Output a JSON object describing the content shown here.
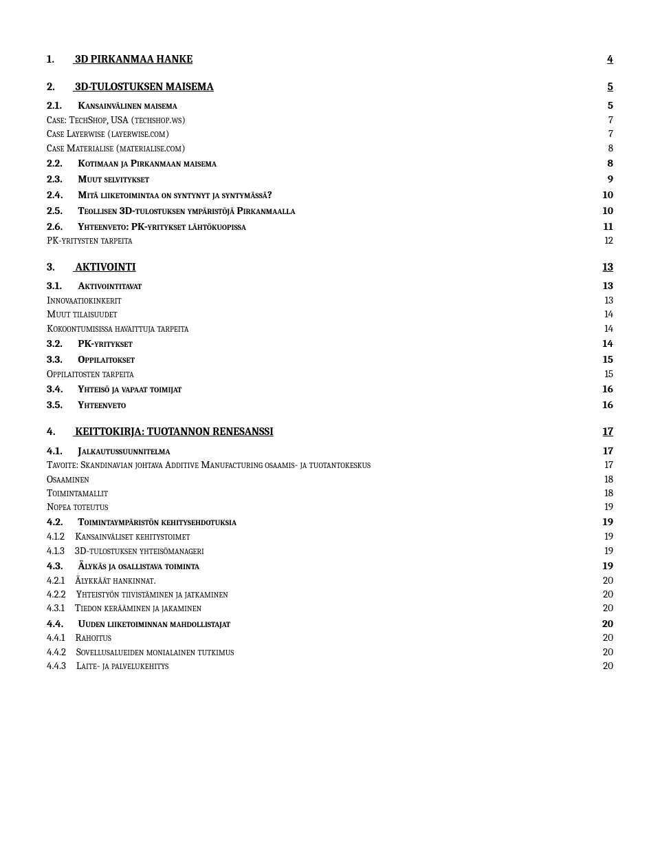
{
  "entries": [
    {
      "level": 1,
      "num": "1.",
      "text": "3D PIRKANMAA HANKE",
      "page": "4"
    },
    {
      "level": 1,
      "num": "2.",
      "text": "3D-TULOSTUKSEN MAISEMA",
      "page": "5"
    },
    {
      "level": 2,
      "num": "2.1.",
      "text": "Kansainvälinen maisema",
      "page": "5"
    },
    {
      "level": 3,
      "num": "",
      "text": "Case: TechShop, USA (techshop.ws)",
      "page": "7"
    },
    {
      "level": 3,
      "num": "",
      "text": "Case Layerwise (layerwise.com)",
      "page": "7"
    },
    {
      "level": 3,
      "num": "",
      "text": "Case Materialise (materialise.com)",
      "page": "8"
    },
    {
      "level": 2,
      "num": "2.2.",
      "text": "Kotimaan ja Pirkanmaan maisema",
      "page": "8"
    },
    {
      "level": 2,
      "num": "2.3.",
      "text": "Muut selvitykset",
      "page": "9"
    },
    {
      "level": 2,
      "num": "2.4.",
      "text": "Mitä liiketoimintaa on syntynyt ja syntymässä?",
      "page": "10"
    },
    {
      "level": 2,
      "num": "2.5.",
      "text": "Teollisen 3D-tulostuksen ympäristöjä Pirkanmaalla",
      "page": "10"
    },
    {
      "level": 2,
      "num": "2.6.",
      "text": "Yhteenveto: PK-yritykset lähtökuopissa",
      "page": "11"
    },
    {
      "level": 3,
      "num": "",
      "text": "PK-yritysten tarpeita",
      "page": "12"
    },
    {
      "level": 1,
      "num": "3.",
      "text": "AKTIVOINTI",
      "page": "13"
    },
    {
      "level": 2,
      "num": "3.1.",
      "text": "Aktivointitavat",
      "page": "13"
    },
    {
      "level": 3,
      "num": "",
      "text": "Innovaatiokinkerit",
      "page": "13"
    },
    {
      "level": 3,
      "num": "",
      "text": "Muut tilaisuudet",
      "page": "14"
    },
    {
      "level": 3,
      "num": "",
      "text": "Kokoontumisissa havaittuja tarpeita",
      "page": "14"
    },
    {
      "level": 2,
      "num": "3.2.",
      "text": "PK-yritykset",
      "page": "14"
    },
    {
      "level": 2,
      "num": "3.3.",
      "text": "Oppilaitokset",
      "page": "15"
    },
    {
      "level": 3,
      "num": "",
      "text": "Oppilaitosten tarpeita",
      "page": "15"
    },
    {
      "level": 2,
      "num": "3.4.",
      "text": "Yhteisö ja vapaat toimijat",
      "page": "16"
    },
    {
      "level": 2,
      "num": "3.5.",
      "text": "Yhteenveto",
      "page": "16"
    },
    {
      "level": 1,
      "num": "4.",
      "text": "KEITTOKIRJA: TUOTANNON RENESANSSI",
      "page": "17"
    },
    {
      "level": 2,
      "num": "4.1.",
      "text": "Jalkautussuunnitelma",
      "page": "17"
    },
    {
      "level": 3,
      "num": "",
      "text": "Tavoite: Skandinavian johtava Additive Manufacturing  osaamis- ja tuotantokeskus",
      "page": "17"
    },
    {
      "level": 3,
      "num": "",
      "text": "Osaaminen",
      "page": "18"
    },
    {
      "level": 3,
      "num": "",
      "text": "Toimintamallit",
      "page": "18"
    },
    {
      "level": 3,
      "num": "",
      "text": "Nopea toteutus",
      "page": "19"
    },
    {
      "level": 2,
      "num": "4.2.",
      "text": "Toimintaympäristön kehitysehdotuksia",
      "page": "19"
    },
    {
      "level": 3,
      "num": "4.1.2",
      "text": "Kansainväliset kehitystoimet",
      "page": "19"
    },
    {
      "level": 3,
      "num": "4.1.3",
      "text": "3D-tulostuksen yhteisömanageri",
      "page": "19"
    },
    {
      "level": 2,
      "num": "4.3.",
      "text": "Älykäs ja osallistava toiminta",
      "page": "19"
    },
    {
      "level": 3,
      "num": "4.2.1",
      "text": "Älykkäät hankinnat.",
      "page": "20"
    },
    {
      "level": 3,
      "num": "4.2.2",
      "text": "Yhteistyön tiivistäminen ja jatkaminen",
      "page": "20"
    },
    {
      "level": 3,
      "num": "4.3.1",
      "text": "Tiedon kerääminen ja jakaminen",
      "page": "20"
    },
    {
      "level": 2,
      "num": "4.4.",
      "text": "Uuden liiketoiminnan mahdollistajat",
      "page": "20"
    },
    {
      "level": 3,
      "num": "4.4.1",
      "text": "Rahoitus",
      "page": "20"
    },
    {
      "level": 3,
      "num": "4.4.2",
      "text": "Sovellusalueiden monialainen tutkimus",
      "page": "20"
    },
    {
      "level": 3,
      "num": "4.4.3",
      "text": "Laite- ja palvelukehitys",
      "page": "20"
    }
  ]
}
